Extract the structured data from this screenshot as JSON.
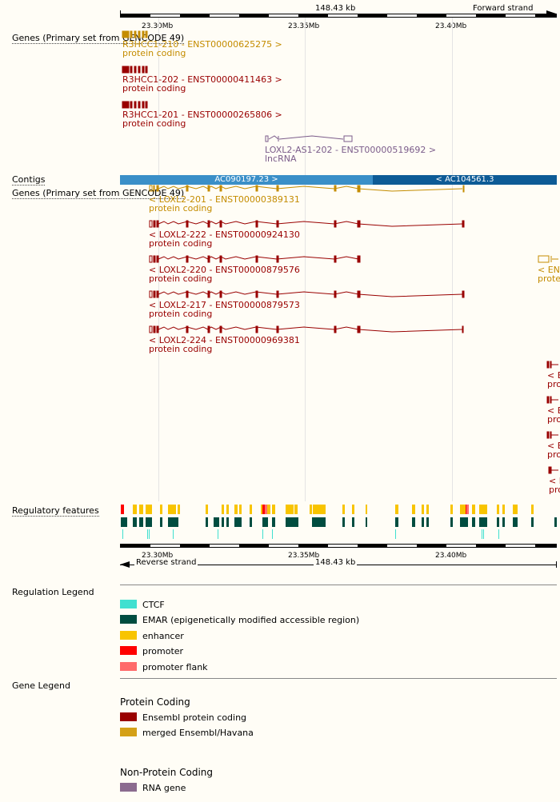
{
  "ruler_top": {
    "span": "148.43 kb",
    "strand": "Forward strand"
  },
  "ruler_bottom": {
    "span": "148.43 kb",
    "strand": "Reverse strand"
  },
  "mb_labels": [
    "23.30Mb",
    "23.35Mb",
    "23.40Mb"
  ],
  "tracks": {
    "genes_top": "Genes (Primary set from GENCODE 49)",
    "contigs": "Contigs",
    "genes_bottom": "Genes (Primary set from GENCODE 49)",
    "regulatory": "Regulatory features"
  },
  "top_transcripts": [
    {
      "name": "R3HCC1-210 - ENST00000625275 >",
      "type": "protein coding",
      "color": "#c48c00"
    },
    {
      "name": "R3HCC1-202 - ENST00000411463 >",
      "type": "protein coding",
      "color": "#990000"
    },
    {
      "name": "R3HCC1-201 - ENST00000265806 >",
      "type": "protein coding",
      "color": "#990000"
    },
    {
      "name": "LOXL2-AS1-202 - ENST00000519692 >",
      "type": "lncRNA",
      "color": "#7b5c8a"
    }
  ],
  "contigs": [
    {
      "name": "AC090197.23 >",
      "color": "#3a8fc8"
    },
    {
      "name": "< AC104561.3",
      "color": "#0d5b96"
    }
  ],
  "bottom_transcripts": [
    {
      "name": "< LOXL2-201 - ENST00000389131",
      "type": "protein coding",
      "color": "#c48c00"
    },
    {
      "name": "< LOXL2-222 - ENST00000924130",
      "type": "protein coding",
      "color": "#990000"
    },
    {
      "name": "< LOXL2-220 - ENST00000879576",
      "type": "protein coding",
      "color": "#990000"
    },
    {
      "name": "< LOXL2-217 - ENST00000879573",
      "type": "protein coding",
      "color": "#990000"
    },
    {
      "name": "< LOXL2-224 - ENST00000969381",
      "type": "protein coding",
      "color": "#990000"
    }
  ],
  "partial_right": {
    "a_name": "< ENT",
    "a_type": "prote",
    "b_items": [
      {
        "name": "< E",
        "type": "prot"
      },
      {
        "name": "< E",
        "type": "prot"
      },
      {
        "name": "< E",
        "type": "prot"
      },
      {
        "name": "< E",
        "type": "prot"
      }
    ]
  },
  "regulation_legend": {
    "title": "Regulation Legend",
    "items": [
      {
        "label": "CTCF",
        "color": "#40e0d0"
      },
      {
        "label": "EMAR (epigenetically modified accessible region)",
        "color": "#004d40"
      },
      {
        "label": "enhancer",
        "color": "#f8c400"
      },
      {
        "label": "promoter",
        "color": "#ff0000"
      },
      {
        "label": "promoter flank",
        "color": "#ff6a6a"
      }
    ]
  },
  "gene_legend": {
    "title": "Gene Legend",
    "protein_heading": "Protein Coding",
    "protein_items": [
      {
        "label": "Ensembl protein coding",
        "color": "#990000"
      },
      {
        "label": "merged Ensembl/Havana",
        "color": "#d4a017"
      }
    ],
    "nonprotein_heading": "Non-Protein Coding",
    "nonprotein_items": [
      {
        "label": "RNA gene",
        "color": "#8b6b8f"
      }
    ]
  }
}
